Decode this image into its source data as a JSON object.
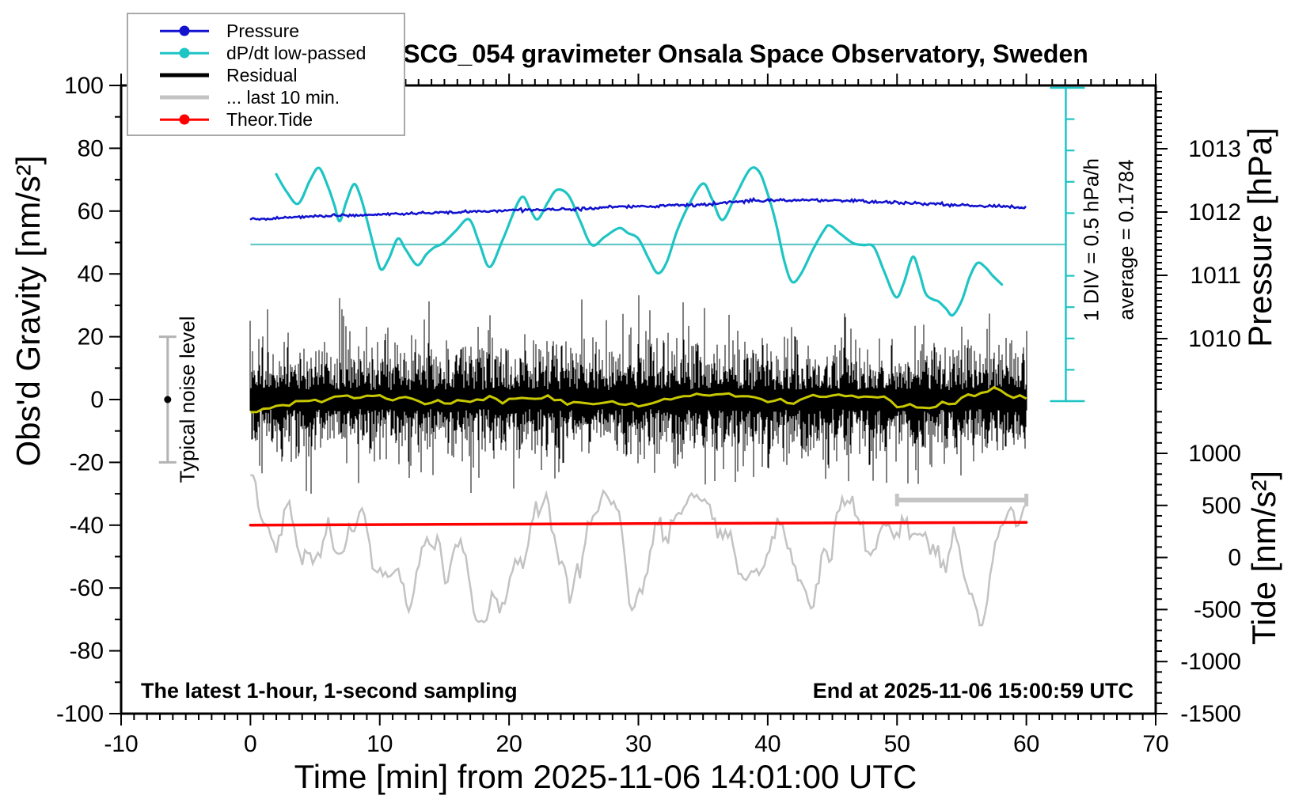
{
  "chart_data": {
    "type": "line",
    "title": "SCG_054 gravimeter Onsala Space Observatory, Sweden",
    "xlabel": "Time [min] from 2025-11-06 14:01:00 UTC",
    "annotations": {
      "sampling_note": "The latest 1-hour, 1-second sampling",
      "end_note": "End at 2025-11-06 15:00:59 UTC",
      "div_scale_label": "1 DIV = 0.5 hPa/h",
      "average_label": "average = 0.1784",
      "noise_label": "Typical noise level"
    },
    "x_axis": {
      "range": [
        -10,
        70
      ],
      "major_step": 10,
      "minor_step": 1,
      "tick_labels": [
        -10,
        0,
        10,
        20,
        30,
        40,
        50,
        60,
        70
      ]
    },
    "gravity_axis": {
      "label": "Obs'd Gravity [nm/s²]",
      "range": [
        -100,
        100
      ],
      "major_step": 20,
      "minor_step": 10,
      "tick_labels": [
        100,
        80,
        60,
        40,
        20,
        0,
        -20,
        -40,
        -60,
        -80,
        -100
      ]
    },
    "pressure_axis": {
      "label": "Pressure [hPa]",
      "tick_labels": [
        1013,
        1012,
        1011,
        1010
      ],
      "minor_step": 0.1
    },
    "tide_axis": {
      "label": "Tide [nm/s²]",
      "tick_labels": [
        1000,
        500,
        0,
        -500,
        -1000,
        -1500
      ],
      "minor_step": 100
    },
    "legend": {
      "items": [
        {
          "id": "pressure",
          "label": "Pressure",
          "color": "#1212cf",
          "style": "line-dot",
          "thickness": 2.5
        },
        {
          "id": "dpdt",
          "label": "dP/dt low-passed",
          "color": "#1fc4c4",
          "style": "line-dot",
          "thickness": 2.5
        },
        {
          "id": "residual",
          "label": "Residual",
          "color": "#000000",
          "style": "line",
          "thickness": 5
        },
        {
          "id": "last10",
          "label": "... last 10 min.",
          "color": "#c3c3c3",
          "style": "line",
          "thickness": 5
        },
        {
          "id": "tide",
          "label": "Theor.Tide",
          "color": "#ff0000",
          "style": "line-dot",
          "thickness": 2.5
        }
      ]
    },
    "series": {
      "pressure": {
        "name": "Pressure",
        "color": "#1212cf",
        "units": "hPa",
        "points": [
          [
            0,
            1011.88
          ],
          [
            3,
            1011.92
          ],
          [
            6,
            1011.94
          ],
          [
            9,
            1011.955
          ],
          [
            12,
            1011.97
          ],
          [
            15,
            1011.995
          ],
          [
            18,
            1012.01
          ],
          [
            21,
            1012.03
          ],
          [
            24,
            1012.04
          ],
          [
            27,
            1012.065
          ],
          [
            30,
            1012.09
          ],
          [
            33,
            1012.1
          ],
          [
            36,
            1012.13
          ],
          [
            38.5,
            1012.18
          ],
          [
            41,
            1012.185
          ],
          [
            44,
            1012.19
          ],
          [
            47,
            1012.17
          ],
          [
            50,
            1012.15
          ],
          [
            53,
            1012.13
          ],
          [
            56,
            1012.1
          ],
          [
            58,
            1012.09
          ],
          [
            60,
            1012.07
          ]
        ],
        "jitter": 0.9,
        "seed": 5
      },
      "dpdt": {
        "name": "dP/dt low-passed",
        "color": "#1fc4c4",
        "units": "hPa/h",
        "average": 0.1784,
        "div_value": 0.5,
        "average_line_color": "#66c9c9",
        "points": [
          [
            2.0,
            1.3
          ],
          [
            2.8,
            1.02
          ],
          [
            3.7,
            0.83
          ],
          [
            4.6,
            1.2
          ],
          [
            5.3,
            1.4
          ],
          [
            6.0,
            1.1
          ],
          [
            6.5,
            0.8
          ],
          [
            6.9,
            0.55
          ],
          [
            7.4,
            0.85
          ],
          [
            8.0,
            1.14
          ],
          [
            8.5,
            0.95
          ],
          [
            9.0,
            0.58
          ],
          [
            9.6,
            0.1
          ],
          [
            10.1,
            -0.22
          ],
          [
            10.7,
            -0.05
          ],
          [
            11.4,
            0.27
          ],
          [
            12.0,
            0.1
          ],
          [
            12.9,
            -0.15
          ],
          [
            13.6,
            0.02
          ],
          [
            14.2,
            0.13
          ],
          [
            14.9,
            0.2
          ],
          [
            15.9,
            0.4
          ],
          [
            16.9,
            0.58
          ],
          [
            17.7,
            0.2
          ],
          [
            18.5,
            -0.18
          ],
          [
            19.5,
            0.25
          ],
          [
            20.9,
            0.92
          ],
          [
            21.6,
            0.75
          ],
          [
            22.2,
            0.58
          ],
          [
            23.0,
            0.85
          ],
          [
            23.7,
            1.05
          ],
          [
            24.6,
            0.96
          ],
          [
            25.5,
            0.55
          ],
          [
            26.4,
            0.17
          ],
          [
            27.4,
            0.3
          ],
          [
            28.5,
            0.44
          ],
          [
            29.2,
            0.36
          ],
          [
            30.0,
            0.27
          ],
          [
            30.8,
            -0.05
          ],
          [
            31.5,
            -0.28
          ],
          [
            32.2,
            -0.1
          ],
          [
            33.0,
            0.4
          ],
          [
            34.0,
            0.85
          ],
          [
            35.0,
            1.15
          ],
          [
            35.7,
            0.9
          ],
          [
            36.5,
            0.57
          ],
          [
            37.5,
            0.95
          ],
          [
            38.6,
            1.37
          ],
          [
            39.3,
            1.35
          ],
          [
            39.9,
            1.05
          ],
          [
            40.6,
            0.55
          ],
          [
            41.3,
            -0.1
          ],
          [
            41.9,
            -0.42
          ],
          [
            42.6,
            -0.28
          ],
          [
            43.5,
            0.1
          ],
          [
            44.4,
            0.42
          ],
          [
            44.8,
            0.48
          ],
          [
            45.6,
            0.35
          ],
          [
            46.6,
            0.2
          ],
          [
            47.4,
            0.17
          ],
          [
            48.2,
            0.14
          ],
          [
            49.0,
            -0.25
          ],
          [
            49.9,
            -0.66
          ],
          [
            50.5,
            -0.45
          ],
          [
            51.2,
            -0.02
          ],
          [
            51.7,
            -0.25
          ],
          [
            52.2,
            -0.6
          ],
          [
            52.8,
            -0.7
          ],
          [
            53.2,
            -0.73
          ],
          [
            53.8,
            -0.85
          ],
          [
            54.3,
            -0.95
          ],
          [
            55.0,
            -0.72
          ],
          [
            55.6,
            -0.35
          ],
          [
            56.2,
            -0.12
          ],
          [
            56.8,
            -0.18
          ],
          [
            57.4,
            -0.32
          ],
          [
            58.1,
            -0.46
          ]
        ]
      },
      "residual": {
        "name": "Residual",
        "color": "#000000",
        "units": "nm/s²",
        "center": 0,
        "typical_amplitude": 10,
        "max_spike": 34,
        "time_range": [
          0,
          60
        ],
        "seed": 7
      },
      "residual_lowpass": {
        "name": "residual smoothed",
        "color": "#c8c800",
        "center": 0,
        "amplitude": 3.5,
        "seed": 11
      },
      "last10": {
        "name": "... last 10 min.",
        "color": "#c3c3c3",
        "center_gravity": -50,
        "amplitude": 26,
        "time_range": [
          0,
          60
        ],
        "seed": 23
      },
      "tide": {
        "name": "Theor.Tide",
        "color": "#ff0000",
        "units": "nm/s²",
        "points": [
          [
            0,
            310
          ],
          [
            15,
            318
          ],
          [
            30,
            325
          ],
          [
            45,
            331
          ],
          [
            60,
            337
          ]
        ]
      }
    },
    "markers": {
      "noise_bar": {
        "x_min": -6.4,
        "from": -20,
        "to": 20,
        "dot_at": 0,
        "color": "#b3b3b3"
      },
      "last10_bar": {
        "x_from": 50,
        "x_to": 60,
        "gravity_level": -32,
        "color": "#c4c4c4"
      },
      "div_scale": {
        "x_min": 63.05,
        "half_divisions": 5,
        "div_value": 0.5,
        "color": "#1fc4c4"
      }
    }
  }
}
